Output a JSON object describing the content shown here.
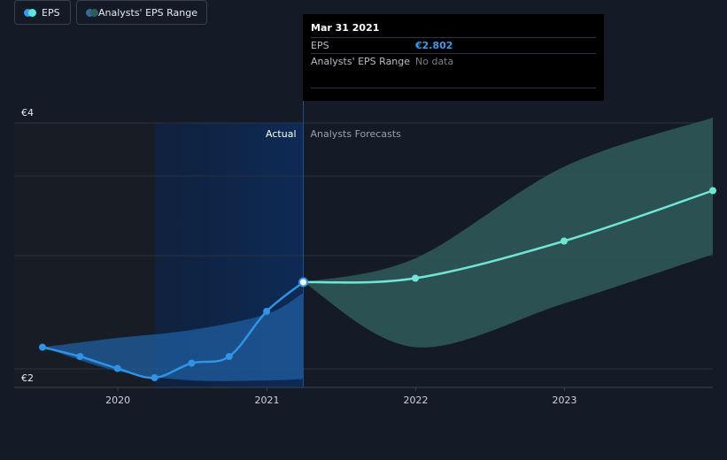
{
  "tooltip": {
    "date": "Mar 31 2021",
    "rows": [
      {
        "label": "EPS",
        "value": "€2.802"
      },
      {
        "label": "Analysts' EPS Range",
        "value": "No data"
      }
    ]
  },
  "segments": {
    "actual": "Actual",
    "forecast": "Analysts Forecasts"
  },
  "legend": [
    {
      "label": "EPS",
      "colors": [
        "#3d9ae8",
        "#5ee6df"
      ]
    },
    {
      "label": "Analysts' EPS Range",
      "colors": [
        "#2f6aa0",
        "#2e5c5c"
      ]
    }
  ],
  "colors": {
    "eps_actual": "#2f93e6",
    "eps_forecast": "#6fe6d6",
    "range_actual": "#1f5ea0",
    "range_forecast": "#2f5a5a"
  },
  "chart_data": {
    "type": "line",
    "y_tick_labels": [
      "€4",
      "€2"
    ],
    "ylim": [
      2,
      4
    ],
    "x_tick_labels": [
      "2020",
      "2021",
      "2022",
      "2023"
    ],
    "xlim": [
      "2019-06-30",
      "2023-12-31"
    ],
    "highlight_date": "2021-03-31",
    "series": [
      {
        "name": "EPS",
        "kind": "actual",
        "points": [
          {
            "x": "2019-06-30",
            "y": 2.31
          },
          {
            "x": "2019-09-30",
            "y": 2.24
          },
          {
            "x": "2019-12-31",
            "y": 2.15
          },
          {
            "x": "2020-03-31",
            "y": 2.08
          },
          {
            "x": "2020-06-30",
            "y": 2.19
          },
          {
            "x": "2020-09-30",
            "y": 2.24
          },
          {
            "x": "2020-12-31",
            "y": 2.58
          },
          {
            "x": "2021-03-31",
            "y": 2.8
          }
        ]
      },
      {
        "name": "EPS",
        "kind": "forecast",
        "points": [
          {
            "x": "2021-03-31",
            "y": 2.8
          },
          {
            "x": "2021-12-31",
            "y": 2.83
          },
          {
            "x": "2022-12-31",
            "y": 3.11
          },
          {
            "x": "2023-12-31",
            "y": 3.49
          }
        ]
      },
      {
        "name": "Analysts' EPS Range",
        "kind": "range_actual",
        "points": [
          {
            "x": "2019-06-30",
            "low": 2.31,
            "high": 2.31
          },
          {
            "x": "2019-12-31",
            "low": 2.13,
            "high": 2.38
          },
          {
            "x": "2020-06-30",
            "low": 2.06,
            "high": 2.44
          },
          {
            "x": "2020-12-31",
            "low": 2.06,
            "high": 2.56
          },
          {
            "x": "2021-03-31",
            "low": 2.07,
            "high": 2.72
          }
        ]
      },
      {
        "name": "Analysts' EPS Range",
        "kind": "range_forecast",
        "points": [
          {
            "x": "2021-03-31",
            "low": 2.8,
            "high": 2.8
          },
          {
            "x": "2021-12-31",
            "low": 2.31,
            "high": 2.98
          },
          {
            "x": "2022-12-31",
            "low": 2.64,
            "high": 3.67
          },
          {
            "x": "2023-12-31",
            "low": 3.01,
            "high": 4.04
          }
        ]
      }
    ]
  }
}
